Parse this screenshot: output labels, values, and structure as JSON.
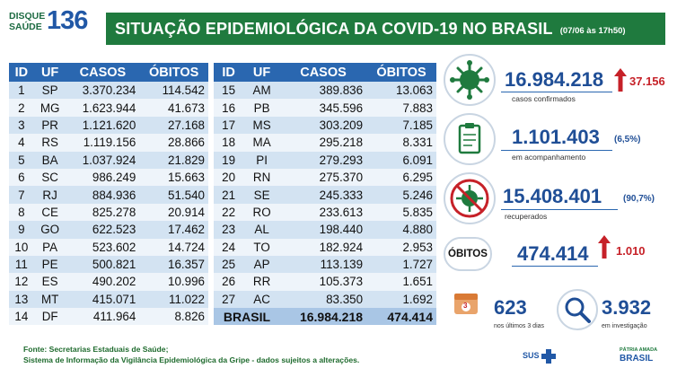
{
  "logo": {
    "line1": "DISQUE",
    "line2": "SAÚDE",
    "number": "136"
  },
  "header": {
    "title": "SITUAÇÃO EPIDEMIOLÓGICA DA COVID-19 NO BRASIL",
    "date": "(07/06 às 17h50)"
  },
  "table_left": {
    "headers": [
      "ID",
      "UF",
      "CASOS",
      "ÓBITOS"
    ],
    "rows": [
      [
        "1",
        "SP",
        "3.370.234",
        "114.542"
      ],
      [
        "2",
        "MG",
        "1.623.944",
        "41.673"
      ],
      [
        "3",
        "PR",
        "1.121.620",
        "27.168"
      ],
      [
        "4",
        "RS",
        "1.119.156",
        "28.866"
      ],
      [
        "5",
        "BA",
        "1.037.924",
        "21.829"
      ],
      [
        "6",
        "SC",
        "986.249",
        "15.663"
      ],
      [
        "7",
        "RJ",
        "884.936",
        "51.540"
      ],
      [
        "8",
        "CE",
        "825.278",
        "20.914"
      ],
      [
        "9",
        "GO",
        "622.523",
        "17.462"
      ],
      [
        "10",
        "PA",
        "523.602",
        "14.724"
      ],
      [
        "11",
        "PE",
        "500.821",
        "16.357"
      ],
      [
        "12",
        "ES",
        "490.202",
        "10.996"
      ],
      [
        "13",
        "MT",
        "415.071",
        "11.022"
      ],
      [
        "14",
        "DF",
        "411.964",
        "8.826"
      ]
    ]
  },
  "table_right": {
    "headers": [
      "ID",
      "UF",
      "CASOS",
      "ÓBITOS"
    ],
    "rows": [
      [
        "15",
        "AM",
        "389.836",
        "13.063"
      ],
      [
        "16",
        "PB",
        "345.596",
        "7.883"
      ],
      [
        "17",
        "MS",
        "303.209",
        "7.185"
      ],
      [
        "18",
        "MA",
        "295.218",
        "8.331"
      ],
      [
        "19",
        "PI",
        "279.293",
        "6.091"
      ],
      [
        "20",
        "RN",
        "275.370",
        "6.295"
      ],
      [
        "21",
        "SE",
        "245.333",
        "5.246"
      ],
      [
        "22",
        "RO",
        "233.613",
        "5.835"
      ],
      [
        "23",
        "AL",
        "198.440",
        "4.880"
      ],
      [
        "24",
        "TO",
        "182.924",
        "2.953"
      ],
      [
        "25",
        "AP",
        "113.139",
        "1.727"
      ],
      [
        "26",
        "RR",
        "105.373",
        "1.651"
      ],
      [
        "27",
        "AC",
        "83.350",
        "1.692"
      ]
    ],
    "total": {
      "label": "BRASIL",
      "cases": "16.984.218",
      "deaths": "474.414"
    }
  },
  "stats": {
    "confirmed": {
      "value": "16.984.218",
      "increase": "37.156",
      "label": "casos confirmados"
    },
    "monitoring": {
      "value": "1.101.403",
      "pct": "(6,5%)",
      "label": "em acompanhamento"
    },
    "recovered": {
      "value": "15.408.401",
      "pct": "(90,7%)",
      "label": "recuperados"
    },
    "deaths": {
      "badge": "ÓBITOS",
      "value": "474.414",
      "increase": "1.010"
    },
    "last3": {
      "value": "623",
      "label": "nos últimos 3 dias",
      "calendar": "3"
    },
    "investigation": {
      "value": "3.932",
      "label": "em investigação"
    }
  },
  "footer": {
    "line1": "Fonte: Secretarias Estaduais de Saúde;",
    "line2": "Sistema de Informação da Vigilância Epidemiológica da Gripe - dados sujeitos a alterações."
  },
  "brand": {
    "sus": "SUS",
    "gov1": "PÁTRIA AMADA",
    "gov2": "BRASIL"
  },
  "colors": {
    "green": "#1f7a3e",
    "blue": "#2a67b0",
    "red": "#c62128",
    "navy": "#1f4e96"
  },
  "icons": [
    "virus-icon",
    "clipboard-icon",
    "no-virus-icon",
    "calendar-icon",
    "magnifier-icon",
    "cross-icon"
  ]
}
